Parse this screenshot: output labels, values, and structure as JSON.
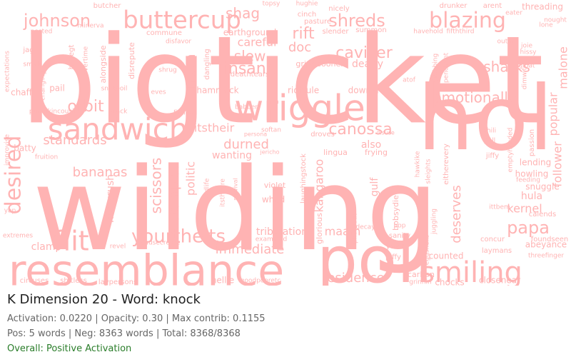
{
  "word_color": "#ffb3b3",
  "words": [
    {
      "text": "bigticket",
      "size": 170
    },
    {
      "text": "wilding",
      "size": 160
    },
    {
      "text": "hol",
      "size": 125
    },
    {
      "text": "poll",
      "size": 90
    },
    {
      "text": "resemblance",
      "size": 60
    },
    {
      "text": "wriggle",
      "size": 50
    },
    {
      "text": "sandwich",
      "size": 42
    },
    {
      "text": "buttercup",
      "size": 34
    },
    {
      "text": "smiling",
      "size": 40
    },
    {
      "text": "flit",
      "size": 38
    },
    {
      "text": "blazing",
      "size": 30
    },
    {
      "text": "desired",
      "size": 30
    },
    {
      "text": "yourtheits",
      "size": 26
    },
    {
      "text": "papa",
      "size": 24
    },
    {
      "text": "johnson",
      "size": 24
    },
    {
      "text": "shreds",
      "size": 24
    },
    {
      "text": "emotionally",
      "size": 20
    },
    {
      "text": "caviller",
      "size": 22
    },
    {
      "text": "sharks",
      "size": 20
    },
    {
      "text": "canossa",
      "size": 22
    },
    {
      "text": "orbit",
      "size": 22
    },
    {
      "text": "insane",
      "size": 22
    },
    {
      "text": "slew",
      "size": 20
    },
    {
      "text": "rift",
      "size": 22
    },
    {
      "text": "shag",
      "size": 20
    },
    {
      "text": "doc",
      "size": 18
    },
    {
      "text": "bananas",
      "size": 18
    },
    {
      "text": "standards",
      "size": 18
    },
    {
      "text": "scissors",
      "size": 20
    },
    {
      "text": "stompies",
      "size": 18
    },
    {
      "text": "durned",
      "size": 18
    },
    {
      "text": "immediate",
      "size": 18
    },
    {
      "text": "residence",
      "size": 18
    },
    {
      "text": "tribulation",
      "size": 14
    },
    {
      "text": "deserves",
      "size": 18
    },
    {
      "text": "kernel",
      "size": 16
    },
    {
      "text": "follower",
      "size": 16
    },
    {
      "text": "popular",
      "size": 16
    },
    {
      "text": "malone",
      "size": 16
    },
    {
      "text": "nixon",
      "size": 18
    },
    {
      "text": "careful",
      "size": 16
    },
    {
      "text": "dearly",
      "size": 14
    },
    {
      "text": "maam",
      "size": 16
    },
    {
      "text": "kangaroo",
      "size": 16
    },
    {
      "text": "gulf",
      "size": 14
    },
    {
      "text": "also",
      "size": 14
    },
    {
      "text": "wanting",
      "size": 14
    },
    {
      "text": "politic",
      "size": 16
    },
    {
      "text": "itstheir",
      "size": 16
    },
    {
      "text": "hula",
      "size": 14
    },
    {
      "text": "clamp",
      "size": 14
    },
    {
      "text": "hurryrush",
      "size": 14
    },
    {
      "text": "earthground",
      "size": 12
    },
    {
      "text": "hammock",
      "size": 12
    },
    {
      "text": "ridicule",
      "size": 12
    },
    {
      "text": "downer",
      "size": 12
    },
    {
      "text": "chaff",
      "size": 12
    },
    {
      "text": "pail",
      "size": 12
    },
    {
      "text": "batty",
      "size": 12
    },
    {
      "text": "abeyance",
      "size": 12
    },
    {
      "text": "closenear",
      "size": 12
    },
    {
      "text": "chocks",
      "size": 12
    },
    {
      "text": "counted",
      "size": 12
    },
    {
      "text": "nellie",
      "size": 12
    },
    {
      "text": "carbon",
      "size": 11
    },
    {
      "text": "lending",
      "size": 12
    },
    {
      "text": "howling",
      "size": 12
    },
    {
      "text": "snuggle",
      "size": 12
    },
    {
      "text": "threading",
      "size": 12
    },
    {
      "text": "whod",
      "size": 12
    },
    {
      "text": "violet",
      "size": 11
    },
    {
      "text": "bobsydie",
      "size": 11
    },
    {
      "text": "glorious",
      "size": 11
    },
    {
      "text": "laughingstock",
      "size": 10
    },
    {
      "text": "frying",
      "size": 11
    },
    {
      "text": "lingua",
      "size": 11
    },
    {
      "text": "sanity",
      "size": 10
    },
    {
      "text": "yawn",
      "size": 11
    },
    {
      "text": "piffy",
      "size": 10
    },
    {
      "text": "concur",
      "size": 10
    },
    {
      "text": "laymans",
      "size": 10
    },
    {
      "text": "foundseen",
      "size": 10
    },
    {
      "text": "calends",
      "size": 10
    },
    {
      "text": "jiffy",
      "size": 10
    },
    {
      "text": "ittbem",
      "size": 9
    },
    {
      "text": "grinnin",
      "size": 9
    },
    {
      "text": "circuses",
      "size": 10
    },
    {
      "text": "laypersons",
      "size": 10
    },
    {
      "text": "shitless",
      "size": 10
    },
    {
      "text": "goodpooretc",
      "size": 9
    },
    {
      "text": "examined",
      "size": 9
    },
    {
      "text": "causecreate",
      "size": 9
    },
    {
      "text": "revel",
      "size": 9
    },
    {
      "text": "extremes",
      "size": 9
    },
    {
      "text": "fruition",
      "size": 9
    },
    {
      "text": "dangling",
      "size": 10
    },
    {
      "text": "deathtears",
      "size": 10
    },
    {
      "text": "grips",
      "size": 11
    },
    {
      "text": "sooner",
      "size": 11
    },
    {
      "text": "pasture",
      "size": 10
    },
    {
      "text": "cinch",
      "size": 10
    },
    {
      "text": "summon",
      "size": 10
    },
    {
      "text": "slender",
      "size": 10
    },
    {
      "text": "nicely",
      "size": 10
    },
    {
      "text": "hughie",
      "size": 9
    },
    {
      "text": "topsy",
      "size": 9
    },
    {
      "text": "drunker",
      "size": 10
    },
    {
      "text": "arent",
      "size": 10
    },
    {
      "text": "havehold",
      "size": 9
    },
    {
      "text": "fifththird",
      "size": 9
    },
    {
      "text": "butcher",
      "size": 10
    },
    {
      "text": "minerva",
      "size": 9
    },
    {
      "text": "disfavor",
      "size": 9
    },
    {
      "text": "commune",
      "size": 10
    },
    {
      "text": "posted",
      "size": 9
    },
    {
      "text": "jag",
      "size": 10
    },
    {
      "text": "smelt",
      "size": 9
    },
    {
      "text": "havegt",
      "size": 10
    },
    {
      "text": "overtime",
      "size": 9
    },
    {
      "text": "alongside",
      "size": 11
    },
    {
      "text": "disrepute",
      "size": 11
    },
    {
      "text": "shrug",
      "size": 9
    },
    {
      "text": "snakeoil",
      "size": 9
    },
    {
      "text": "pumpkincousin",
      "size": 9
    },
    {
      "text": "wrack",
      "size": 9
    },
    {
      "text": "eves",
      "size": 9
    },
    {
      "text": "fiction",
      "size": 9
    },
    {
      "text": "babber",
      "size": 9
    },
    {
      "text": "persona",
      "size": 8
    },
    {
      "text": "softan",
      "size": 9
    },
    {
      "text": "droves",
      "size": 10
    },
    {
      "text": "disuse",
      "size": 8
    },
    {
      "text": "hawkike",
      "size": 9
    },
    {
      "text": "sleights",
      "size": 9
    },
    {
      "text": "eitherevery",
      "size": 10
    },
    {
      "text": "chili",
      "size": 9
    },
    {
      "text": "pall",
      "size": 9
    },
    {
      "text": "passion",
      "size": 10
    },
    {
      "text": "emptyhanded",
      "size": 9
    },
    {
      "text": "drubbing",
      "size": 9
    },
    {
      "text": "penchant",
      "size": 9
    },
    {
      "text": "outin",
      "size": 9
    },
    {
      "text": "joie",
      "size": 9
    },
    {
      "text": "hissy",
      "size": 9
    },
    {
      "text": "gloat",
      "size": 9
    },
    {
      "text": "dimwit",
      "size": 9
    },
    {
      "text": "atof",
      "size": 9
    },
    {
      "text": "nought",
      "size": 9
    },
    {
      "text": "lone",
      "size": 9
    },
    {
      "text": "eater",
      "size": 9
    },
    {
      "text": "threefinger",
      "size": 9
    },
    {
      "text": "feeding",
      "size": 9
    },
    {
      "text": "arrival",
      "size": 8
    },
    {
      "text": "jericho",
      "size": 8
    },
    {
      "text": "midlife",
      "size": 9
    },
    {
      "text": "itstheyre",
      "size": 9
    },
    {
      "text": "survival",
      "size": 8
    },
    {
      "text": "decay",
      "size": 9
    },
    {
      "text": "phaseout",
      "size": 9
    },
    {
      "text": "eggshells",
      "size": 9
    },
    {
      "text": "juggling",
      "size": 9
    },
    {
      "text": "bop",
      "size": 9
    },
    {
      "text": "improvise",
      "size": 9
    },
    {
      "text": "expectations",
      "size": 9
    },
    {
      "text": "changing",
      "size": 9
    },
    {
      "text": "yap",
      "size": 9
    }
  ],
  "info": {
    "title": "K Dimension 20 - Word: knock",
    "stats_line": "Activation: 0.0220 | Opacity: 0.30 | Max contrib: 0.1155",
    "counts_line": "Pos: 5 words | Neg: 8363 words | Total: 8368/8368",
    "overall": "Overall: Positive Activation",
    "overall_color": "#2a7d2a"
  }
}
